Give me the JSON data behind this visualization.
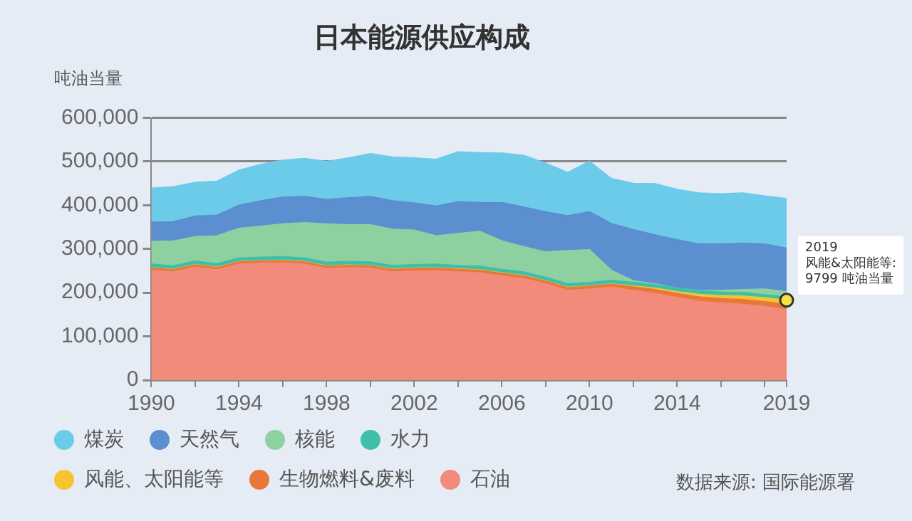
{
  "chart_data": {
    "type": "area",
    "stacked": true,
    "title": "日本能源供应构成",
    "ylabel": "吨油当量",
    "x": [
      1990,
      1991,
      1992,
      1993,
      1994,
      1995,
      1996,
      1997,
      1998,
      1999,
      2000,
      2001,
      2002,
      2003,
      2004,
      2005,
      2006,
      2007,
      2008,
      2009,
      2010,
      2011,
      2012,
      2013,
      2014,
      2015,
      2016,
      2017,
      2018,
      2019
    ],
    "series": [
      {
        "name": "石油",
        "color": "#f28b7a",
        "values": [
          251000,
          247000,
          258000,
          252000,
          265000,
          267000,
          268000,
          265000,
          255000,
          257000,
          256000,
          247000,
          249000,
          250000,
          247000,
          245000,
          238000,
          232000,
          220000,
          205000,
          208000,
          212000,
          205000,
          198000,
          189000,
          180000,
          176000,
          173000,
          168000,
          161000
        ]
      },
      {
        "name": "生物燃料&废料",
        "color": "#e8773a",
        "values": [
          5000,
          5000,
          5000,
          5000,
          5000,
          5000,
          5000,
          5000,
          5000,
          5000,
          5000,
          6000,
          6000,
          6000,
          6000,
          6000,
          6000,
          6000,
          6000,
          6000,
          6000,
          7000,
          8000,
          9000,
          9000,
          10000,
          10000,
          11000,
          11000,
          12000
        ]
      },
      {
        "name": "风能、太阳能等",
        "color": "#f5c531",
        "values": [
          1000,
          1000,
          1000,
          1000,
          1000,
          1000,
          1000,
          1000,
          1000,
          1000,
          1000,
          1000,
          1000,
          1000,
          1000,
          1000,
          1000,
          1000,
          1000,
          1000,
          1000,
          1000,
          2000,
          3000,
          4000,
          6000,
          7000,
          8000,
          9000,
          9799
        ]
      },
      {
        "name": "水力",
        "color": "#3dbfaa",
        "values": [
          8000,
          8000,
          8000,
          8000,
          8000,
          8000,
          8000,
          8000,
          8000,
          8000,
          8000,
          8000,
          8000,
          8000,
          8000,
          8000,
          8000,
          8000,
          8000,
          8000,
          8000,
          8000,
          8000,
          8000,
          8000,
          8000,
          8000,
          8000,
          7000,
          7000
        ]
      },
      {
        "name": "核能",
        "color": "#8fd0a0",
        "values": [
          52000,
          57000,
          56000,
          64000,
          68000,
          71000,
          75000,
          81000,
          88000,
          84000,
          85000,
          83000,
          79000,
          65000,
          73000,
          80000,
          65000,
          58000,
          58000,
          76000,
          75000,
          23000,
          4000,
          2000,
          0,
          1000,
          4000,
          7000,
          13000,
          12000
        ]
      },
      {
        "name": "天然气",
        "color": "#5b8fcf",
        "values": [
          44000,
          44000,
          47000,
          47000,
          53000,
          58000,
          61000,
          60000,
          56000,
          62000,
          65000,
          65000,
          62000,
          68000,
          73000,
          66000,
          88000,
          91000,
          92000,
          80000,
          87000,
          107000,
          117000,
          112000,
          111000,
          106000,
          106000,
          106000,
          103000,
          100000
        ]
      },
      {
        "name": "煤炭",
        "color": "#6dcbea",
        "values": [
          78000,
          80000,
          77000,
          78000,
          80000,
          83000,
          85000,
          87000,
          87000,
          91000,
          98000,
          100000,
          103000,
          107000,
          114000,
          114000,
          113000,
          118000,
          111000,
          99000,
          115000,
          103000,
          106000,
          117000,
          115000,
          117000,
          115000,
          115000,
          110000,
          113000
        ]
      }
    ],
    "xlim": [
      1990,
      2019
    ],
    "xticks": [
      1990,
      {
        "value": 1992,
        "label": null
      },
      1994,
      {
        "value": 1996,
        "label": null
      },
      1998,
      {
        "value": 2000,
        "label": null
      },
      2002,
      {
        "value": 2004,
        "label": null
      },
      2006,
      {
        "value": 2008,
        "label": null
      },
      2010,
      {
        "value": 2012,
        "label": null
      },
      2014,
      {
        "value": 2016,
        "label": null
      },
      {
        "value": 2018,
        "label": null
      },
      2019
    ],
    "ylim": [
      0,
      600000
    ],
    "yticks": [
      {
        "value": 0,
        "label": "0"
      },
      {
        "value": 100000,
        "label": "100,000"
      },
      {
        "value": 200000,
        "label": "200,000"
      },
      {
        "value": 300000,
        "label": "300,000"
      },
      {
        "value": 400000,
        "label": "400,000"
      },
      {
        "value": 500000,
        "label": "500,000"
      },
      {
        "value": 600000,
        "label": "600,000"
      }
    ],
    "grid": "y",
    "legend": "bottom",
    "marker": "none",
    "annotations": [
      {
        "text": "2019\n风能&太阳能等: 9799 吨油当量",
        "x": 2019,
        "y": 182799
      },
      "数据来源: 国际能源署"
    ]
  }
}
